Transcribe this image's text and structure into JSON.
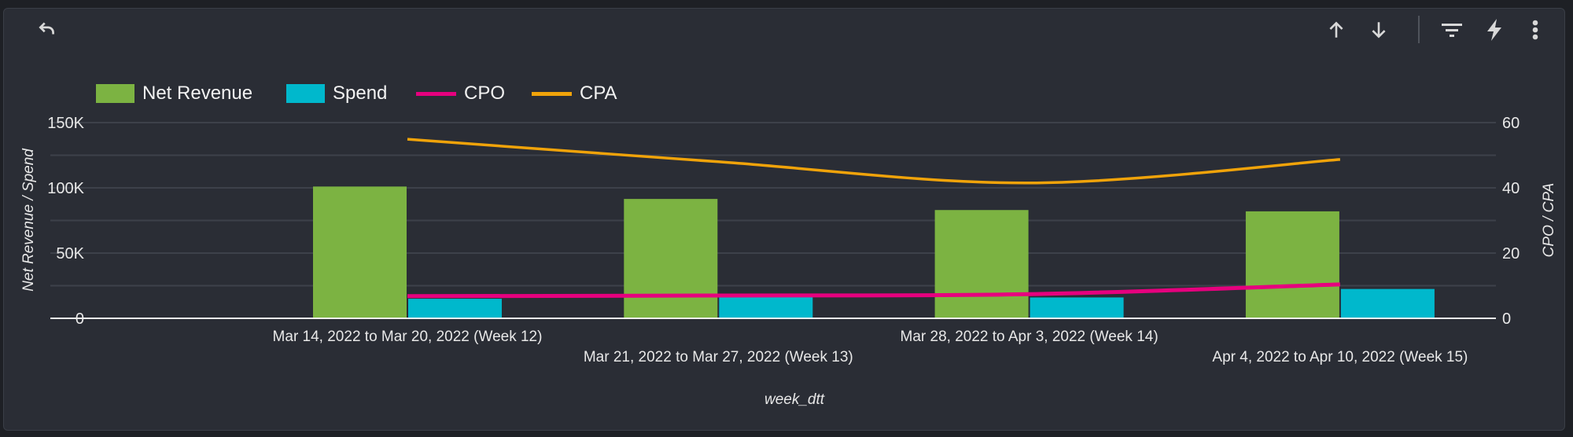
{
  "toolbar": {
    "icons": [
      "undo-icon",
      "arrow-up-icon",
      "arrow-down-icon",
      "filter-icon",
      "bolt-icon",
      "more-vert-icon"
    ]
  },
  "colors": {
    "net_revenue": "#7cb342",
    "spend": "#00b8cc",
    "cpo": "#e6007e",
    "cpa": "#f0a30a"
  },
  "chart_data": {
    "type": "bar",
    "title": "",
    "xlabel": "week_dtt",
    "ylabel": "Net Revenue / Spend",
    "y2label": "CPO / CPA",
    "ylim": [
      0,
      150000
    ],
    "y2lim": [
      0,
      60
    ],
    "yticks": [
      "0",
      "50K",
      "100K",
      "150K"
    ],
    "y2ticks": [
      "0",
      "20",
      "40",
      "60"
    ],
    "grid": true,
    "legend_position": "top-left",
    "categories": [
      "Mar 14, 2022 to Mar 20, 2022 (Week 12)",
      "Mar 21, 2022 to Mar 27, 2022 (Week 13)",
      "Mar 28, 2022 to Apr 3, 2022 (Week 14)",
      "Apr 4, 2022 to Apr 10, 2022 (Week 15)"
    ],
    "series": [
      {
        "name": "Net Revenue",
        "type": "bar",
        "axis": "left",
        "values": [
          101000,
          91500,
          83000,
          82000
        ]
      },
      {
        "name": "Spend",
        "type": "bar",
        "axis": "left",
        "values": [
          15000,
          16300,
          16000,
          22500
        ]
      },
      {
        "name": "CPO",
        "type": "line",
        "axis": "right",
        "values": [
          6.8,
          7.0,
          7.4,
          10.4
        ]
      },
      {
        "name": "CPA",
        "type": "line",
        "axis": "right",
        "values": [
          54.9,
          48.0,
          41.5,
          48.7
        ]
      }
    ]
  }
}
